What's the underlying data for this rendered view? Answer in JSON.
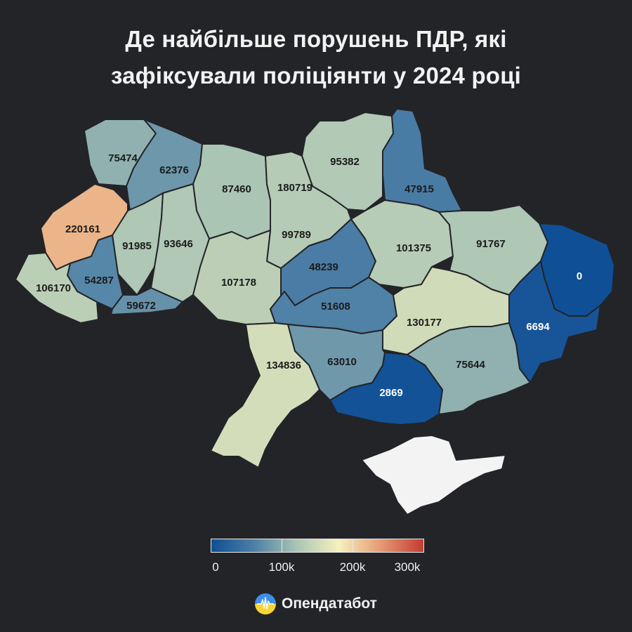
{
  "title": {
    "line1": "Де найбільше порушень ПДР, які",
    "line2": "зафіксували поліціянти у 2024 році"
  },
  "map": {
    "regions": [
      {
        "id": "volyn",
        "value": 75474
      },
      {
        "id": "rivne",
        "value": 62376
      },
      {
        "id": "zhytomyr",
        "value": 87460
      },
      {
        "id": "kyiv-city",
        "value": 180719
      },
      {
        "id": "kyiv-oblast",
        "value": 99789
      },
      {
        "id": "chernihiv",
        "value": 95382
      },
      {
        "id": "sumy",
        "value": 47915
      },
      {
        "id": "lviv",
        "value": 220161
      },
      {
        "id": "ternopil",
        "value": 91985
      },
      {
        "id": "khmelnytskyi",
        "value": 93646
      },
      {
        "id": "ivano-frankivsk",
        "value": 54287
      },
      {
        "id": "zakarpattia",
        "value": 106170
      },
      {
        "id": "chernivtsi",
        "value": 59672
      },
      {
        "id": "vinnytsia",
        "value": 107178
      },
      {
        "id": "cherkasy",
        "value": 48239
      },
      {
        "id": "poltava",
        "value": 101375
      },
      {
        "id": "kharkiv",
        "value": 91767
      },
      {
        "id": "luhansk",
        "value": 0
      },
      {
        "id": "donetsk",
        "value": 6694
      },
      {
        "id": "kirovohrad",
        "value": 51608
      },
      {
        "id": "dnipropetrovsk",
        "value": 130177
      },
      {
        "id": "zaporizhzhia",
        "value": 75644
      },
      {
        "id": "kherson",
        "value": 2869
      },
      {
        "id": "mykolaiv",
        "value": 63010
      },
      {
        "id": "odesa",
        "value": 134836
      },
      {
        "id": "crimea",
        "value": null
      }
    ]
  },
  "legend": {
    "labels": [
      "0",
      "100k",
      "200k",
      "300k"
    ],
    "colors": [
      "#0f4f96",
      "#4c7ea6",
      "#a9c4b4",
      "#f6f1be",
      "#e69a72",
      "#c43a32"
    ]
  },
  "brand": {
    "name": "Опендатабот",
    "icon": "pulse-icon"
  },
  "colors": {
    "background": "#232428",
    "crimea": "#f3f3f3"
  }
}
